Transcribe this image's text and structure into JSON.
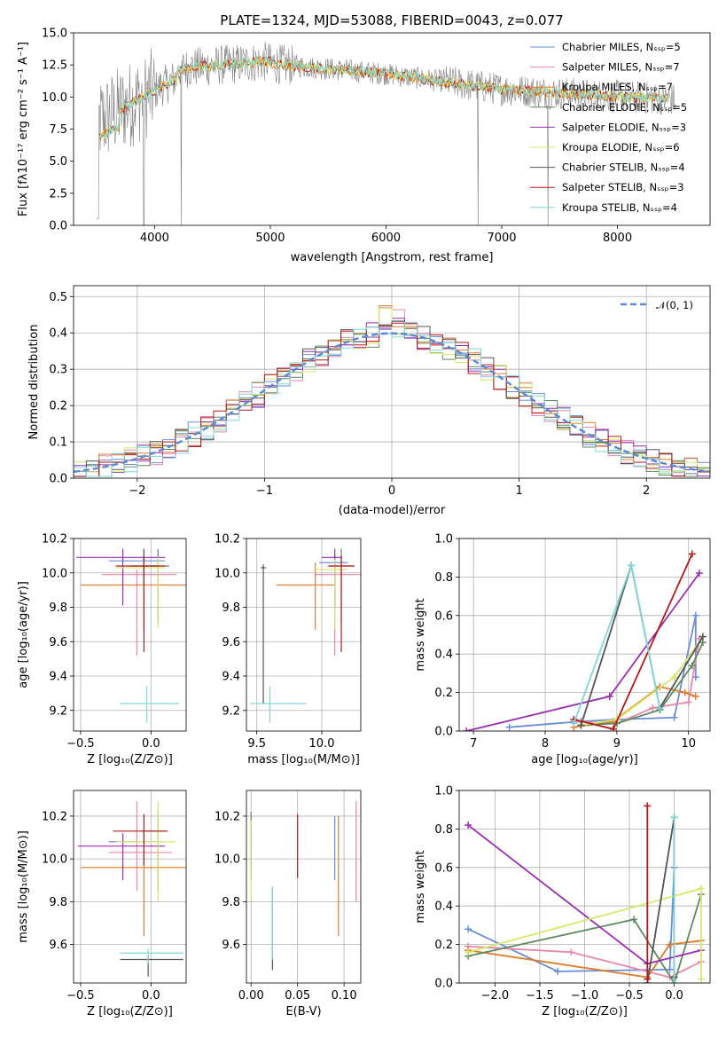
{
  "colors": [
    "#6a8ed8",
    "#e887b0",
    "#e07b2a",
    "#5e8a60",
    "#9a2db1",
    "#d7e86a",
    "#555555",
    "#b4191a",
    "#7fd7d9"
  ],
  "spectrum": {
    "title": "PLATE=1324, MJD=53088, FIBERID=0043, z=0.077",
    "xlabel": "wavelength [Angstrom, rest frame]",
    "ylabel": "Flux [fλ10⁻¹⁷ erg cm⁻² s⁻¹ A⁻¹]",
    "xticks": [
      "4000",
      "5000",
      "6000",
      "7000",
      "8000"
    ],
    "yticks": [
      "0.0",
      "2.5",
      "5.0",
      "7.5",
      "10.0",
      "12.5",
      "15.0"
    ],
    "legend": [
      "Chabrier MILES, Nₛₛₚ=5",
      "Salpeter MILES, Nₛₛₚ=7",
      "Kroupa MILES, Nₛₛₚ=7",
      "Chabrier ELODIE, Nₛₛₚ=5",
      "Salpeter ELODIE, Nₛₛₚ=3",
      "Kroupa ELODIE, Nₛₛₚ=6",
      "Chabrier STELIB, Nₛₛₚ=4",
      "Salpeter STELIB, Nₛₛₚ=3",
      "Kroupa STELIB, Nₛₛₚ=4"
    ]
  },
  "residuals": {
    "xlabel": "(data-model)/error",
    "ylabel": "Normed distribution",
    "xticks": [
      "−2",
      "−1",
      "0",
      "1",
      "2"
    ],
    "yticks": [
      "0.0",
      "0.1",
      "0.2",
      "0.3",
      "0.4",
      "0.5"
    ],
    "legend": "𝒩(0, 1)"
  },
  "panels": {
    "p1": {
      "xlabel": "Z [log₁₀(Z/Z⊙)]",
      "ylabel": "age  [log₁₀(age/yr)]",
      "xticks": [
        "−0.5",
        "0.0"
      ],
      "yticks": [
        "9.2",
        "9.4",
        "9.6",
        "9.8",
        "10.0",
        "10.2"
      ]
    },
    "p2": {
      "xlabel": "mass [log₁₀(M/M⊙)]",
      "yticks": [
        "9.2",
        "9.4",
        "9.6",
        "9.8",
        "10.0",
        "10.2"
      ],
      "xticks": [
        "9.5",
        "10.0"
      ]
    },
    "p3": {
      "xlabel": "age  [log₁₀(age/yr)]",
      "ylabel": "mass weight",
      "xticks": [
        "7",
        "8",
        "9",
        "10"
      ],
      "yticks": [
        "0.0",
        "0.2",
        "0.4",
        "0.6",
        "0.8",
        "1.0"
      ]
    },
    "p4": {
      "xlabel": "Z [log₁₀(Z/Z⊙)]",
      "ylabel": "mass [log₁₀(M/M⊙)]",
      "xticks": [
        "−0.5",
        "0.0"
      ],
      "yticks": [
        "9.6",
        "9.8",
        "10.0",
        "10.2"
      ]
    },
    "p5": {
      "xlabel": "E(B-V)",
      "xticks": [
        "0.00",
        "0.05",
        "0.10"
      ],
      "yticks": [
        "9.6",
        "9.8",
        "10.0",
        "10.2"
      ]
    },
    "p6": {
      "xlabel": "Z [log₁₀(Z/Z⊙)]",
      "ylabel": "mass weight",
      "xticks": [
        "−2.0",
        "−1.5",
        "−1.0",
        "−0.5",
        "0.0"
      ],
      "yticks": [
        "0.0",
        "0.2",
        "0.4",
        "0.6",
        "0.8",
        "1.0"
      ]
    }
  },
  "chart_data": [
    {
      "type": "line",
      "name": "spectrum",
      "xlim": [
        3300,
        8800
      ],
      "ylim": [
        0,
        15
      ],
      "grid": false,
      "legend_position": "right"
    },
    {
      "type": "bar",
      "name": "residual-histogram",
      "xlim": [
        -2.5,
        2.5
      ],
      "ylim": [
        0,
        0.53
      ],
      "grid": true,
      "legend_position": "top-right",
      "bin_width": 0.1,
      "gaussian": {
        "mean": 0,
        "sigma": 1
      }
    },
    {
      "type": "scatter",
      "name": "age-vs-Z",
      "xlim": [
        -0.55,
        0.25
      ],
      "ylim": [
        9.08,
        10.2
      ],
      "points": [
        {
          "x": -0.05,
          "y": 10.07,
          "xerr": [
            0.25,
            0.15
          ],
          "yerr": [
            0.1,
            0.07
          ]
        },
        {
          "x": -0.1,
          "y": 9.99,
          "xerr": [
            0.25,
            0.28
          ],
          "yerr": [
            0.47,
            0.03
          ]
        },
        {
          "x": -0.05,
          "y": 9.93,
          "xerr": [
            0.45,
            0.3
          ],
          "yerr": [
            0.26,
            0.13
          ]
        },
        {
          "x": 0.05,
          "y": 10.04,
          "xerr": [
            0.12,
            0.08
          ],
          "yerr": [
            0.33,
            0.1
          ]
        },
        {
          "x": -0.2,
          "y": 10.09,
          "xerr": [
            0.33,
            0.3
          ],
          "yerr": [
            0.28,
            0.05
          ]
        },
        {
          "x": 0.05,
          "y": 10.03,
          "xerr": [
            0.3,
            0.05
          ],
          "yerr": [
            0.35,
            0.06
          ]
        },
        {
          "x": -0.05,
          "y": 10.04,
          "xerr": [
            0.1,
            0.1
          ],
          "yerr": [
            0.1,
            0.1
          ]
        },
        {
          "x": -0.05,
          "y": 10.04,
          "xerr": [
            0.2,
            0.15
          ],
          "yerr": [
            0.5,
            0.06
          ]
        },
        {
          "x": -0.03,
          "y": 9.24,
          "xerr": [
            0.19,
            0.23
          ],
          "yerr": [
            0.11,
            0.1
          ]
        }
      ]
    },
    {
      "type": "scatter",
      "name": "age-vs-mass",
      "xlim": [
        9.42,
        10.3
      ],
      "ylim": [
        9.08,
        10.2
      ],
      "points": [
        {
          "x": 10.1,
          "y": 10.06,
          "xerr": [
            0.12,
            0.1
          ],
          "yerr": [
            0.08,
            0.05
          ]
        },
        {
          "x": 10.1,
          "y": 9.99,
          "xerr": [
            0.15,
            0.2
          ],
          "yerr": [
            0.47,
            0.03
          ]
        },
        {
          "x": 9.95,
          "y": 9.93,
          "xerr": [
            0.3,
            0.15
          ],
          "yerr": [
            0.26,
            0.13
          ]
        },
        {
          "x": 10.15,
          "y": 10.04,
          "xerr": [
            0.1,
            0.1
          ],
          "yerr": [
            0.33,
            0.1
          ]
        },
        {
          "x": 10.1,
          "y": 10.09,
          "xerr": [
            0.1,
            0.05
          ],
          "yerr": [
            0.28,
            0.05
          ]
        },
        {
          "x": 10.1,
          "y": 10.02,
          "xerr": [
            0.15,
            0.1
          ],
          "yerr": [
            0.35,
            0.06
          ]
        },
        {
          "x": 9.55,
          "y": 10.03,
          "xerr": [
            0.02,
            0.02
          ],
          "yerr": [
            0.79,
            0.02
          ]
        },
        {
          "x": 10.15,
          "y": 10.04,
          "xerr": [
            0.1,
            0.1
          ],
          "yerr": [
            0.5,
            0.06
          ]
        },
        {
          "x": 9.6,
          "y": 9.24,
          "xerr": [
            0.15,
            0.28
          ],
          "yerr": [
            0.11,
            0.1
          ]
        }
      ]
    },
    {
      "type": "line",
      "name": "mass-weight-vs-age",
      "xlim": [
        6.8,
        10.3
      ],
      "ylim": [
        0,
        1
      ],
      "grid": true,
      "series": [
        {
          "x": [
            7.5,
            8.5,
            9.0,
            9.8,
            10.1,
            10.1
          ],
          "y": [
            0.02,
            0.05,
            0.06,
            0.07,
            0.6,
            0.28
          ]
        },
        {
          "x": [
            8.4,
            9.0,
            9.5,
            10.0,
            10.15
          ],
          "y": [
            0.05,
            0.04,
            0.12,
            0.15,
            0.48
          ]
        },
        {
          "x": [
            8.4,
            8.95,
            9.6,
            9.95,
            10.1
          ],
          "y": [
            0.02,
            0.05,
            0.23,
            0.2,
            0.18
          ]
        },
        {
          "x": [
            8.5,
            9.0,
            9.6,
            10.05,
            10.2
          ],
          "y": [
            0.03,
            0.04,
            0.11,
            0.34,
            0.46
          ]
        },
        {
          "x": [
            6.9,
            8.9,
            10.15
          ],
          "y": [
            0.0,
            0.18,
            0.82
          ]
        },
        {
          "x": [
            8.5,
            9.0,
            9.8,
            10.2
          ],
          "y": [
            0.03,
            0.06,
            0.28,
            0.49
          ]
        },
        {
          "x": [
            8.5,
            9.2,
            9.6,
            10.2
          ],
          "y": [
            0.03,
            0.86,
            0.12,
            0.49
          ]
        },
        {
          "x": [
            8.4,
            8.95,
            10.05
          ],
          "y": [
            0.06,
            0.01,
            0.92
          ]
        },
        {
          "x": [
            8.4,
            9.2,
            9.6
          ],
          "y": [
            0.04,
            0.86,
            0.12
          ]
        }
      ]
    },
    {
      "type": "scatter",
      "name": "mass-vs-Z",
      "xlim": [
        -0.55,
        0.25
      ],
      "ylim": [
        9.42,
        10.32
      ],
      "points": [
        {
          "x": -0.05,
          "y": 10.08,
          "xerr": [
            0.25,
            0.15
          ],
          "yerr": [
            0.08,
            0.05
          ]
        },
        {
          "x": -0.1,
          "y": 10.03,
          "xerr": [
            0.2,
            0.25
          ],
          "yerr": [
            0.18,
            0.24
          ]
        },
        {
          "x": -0.05,
          "y": 9.96,
          "xerr": [
            0.45,
            0.3
          ],
          "yerr": [
            0.32,
            0.04
          ]
        },
        {
          "x": 0.05,
          "y": 10.13,
          "xerr": [
            0.12,
            0.05
          ],
          "yerr": [
            0.28,
            0.09
          ]
        },
        {
          "x": -0.2,
          "y": 10.06,
          "xerr": [
            0.32,
            0.3
          ],
          "yerr": [
            0.16,
            0.06
          ]
        },
        {
          "x": 0.05,
          "y": 10.08,
          "xerr": [
            0.3,
            0.12
          ],
          "yerr": [
            0.28,
            0.19
          ]
        },
        {
          "x": -0.02,
          "y": 9.53,
          "xerr": [
            0.2,
            0.25
          ],
          "yerr": [
            0.08,
            0.02
          ]
        },
        {
          "x": -0.05,
          "y": 10.13,
          "xerr": [
            0.22,
            0.17
          ],
          "yerr": [
            0.16,
            0.08
          ]
        },
        {
          "x": -0.02,
          "y": 9.56,
          "xerr": [
            0.2,
            0.25
          ],
          "yerr": [
            0.05,
            0.02
          ]
        }
      ]
    },
    {
      "type": "scatter",
      "name": "mass-vs-ebv",
      "xlim": [
        -0.005,
        0.118
      ],
      "ylim": [
        9.42,
        10.32
      ],
      "points": [
        {
          "x": 0.09,
          "y": 10.05,
          "yerr": [
            0.15,
            0.15
          ]
        },
        {
          "x": 0.113,
          "y": 10.03,
          "yerr": [
            0.23,
            0.24
          ]
        },
        {
          "x": 0.094,
          "y": 9.96,
          "yerr": [
            0.32,
            0.24
          ]
        },
        {
          "x": 0.0,
          "y": 10.1,
          "yerr": [
            0.2,
            0.12
          ]
        },
        {
          "x": 0.0,
          "y": 10.06,
          "yerr": [
            0.1,
            0.1
          ]
        },
        {
          "x": 0.0,
          "y": 10.06,
          "yerr": [
            0.25,
            0.12
          ]
        },
        {
          "x": 0.023,
          "y": 9.68,
          "yerr": [
            0.2,
            0.19
          ]
        },
        {
          "x": 0.05,
          "y": 10.13,
          "yerr": [
            0.22,
            0.08
          ]
        },
        {
          "x": 0.023,
          "y": 9.68,
          "yerr": [
            0.15,
            0.19
          ]
        }
      ]
    },
    {
      "type": "line",
      "name": "mass-weight-vs-Z",
      "xlim": [
        -2.4,
        0.4
      ],
      "ylim": [
        0,
        1
      ],
      "grid": true,
      "series": [
        {
          "x": [
            -2.3,
            -1.3,
            -0.05,
            0.3
          ],
          "y": [
            0.28,
            0.06,
            0.07,
            0.15
          ]
        },
        {
          "x": -2.3,
          "y": 0
        }
      ]
    }
  ]
}
